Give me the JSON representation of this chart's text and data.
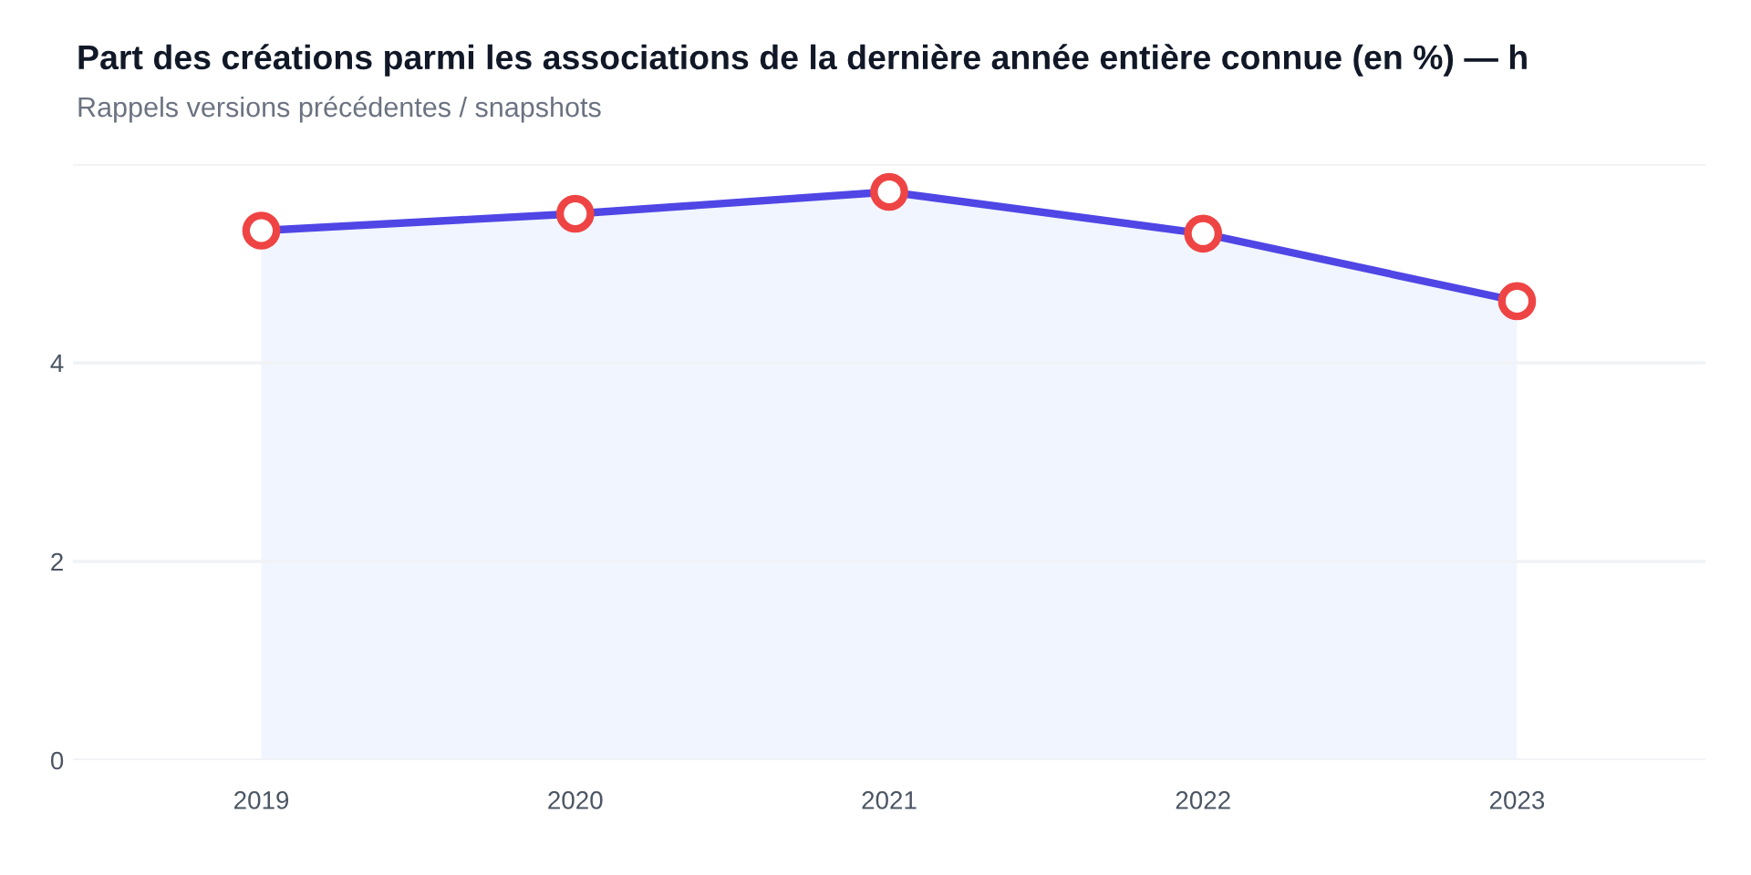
{
  "chart_data": {
    "type": "area",
    "title": "Part des créations parmi les associations de la dernière année entière connue (en %) — h",
    "subtitle": "Rappels versions précédentes / snapshots",
    "categories": [
      "2019",
      "2020",
      "2021",
      "2022",
      "2023"
    ],
    "series": [
      {
        "color": "#4f46e5",
        "values": [
          5.33,
          5.5,
          5.72,
          5.3,
          4.62
        ]
      }
    ],
    "ylim": [
      0,
      6
    ],
    "yticks": [
      {
        "value": 0,
        "label": "0"
      },
      {
        "value": 2,
        "label": "2"
      },
      {
        "value": 4,
        "label": "4"
      },
      {
        "value": 6,
        "label": null
      }
    ],
    "grid": "y",
    "marker": "circle",
    "legend": false
  }
}
